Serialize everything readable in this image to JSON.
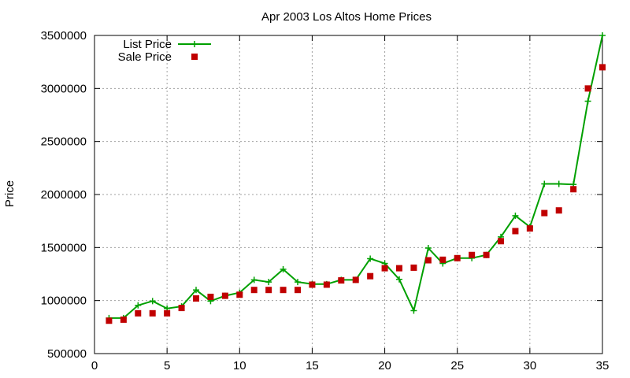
{
  "chart_data": {
    "type": "line",
    "title": "Apr 2003 Los Altos Home Prices",
    "xlabel": "",
    "ylabel": "Price",
    "xlim": [
      0,
      35
    ],
    "ylim": [
      500000,
      3500000
    ],
    "x_ticks": [
      0,
      5,
      10,
      15,
      20,
      25,
      30,
      35
    ],
    "y_ticks": [
      500000,
      1000000,
      1500000,
      2000000,
      2500000,
      3000000,
      3500000
    ],
    "grid": true,
    "legend_position": "top-left",
    "x": [
      1,
      2,
      3,
      4,
      5,
      6,
      7,
      8,
      9,
      10,
      11,
      12,
      13,
      14,
      15,
      16,
      17,
      18,
      19,
      20,
      21,
      22,
      23,
      24,
      25,
      26,
      27,
      28,
      29,
      30,
      31,
      32,
      33,
      34,
      35
    ],
    "series": [
      {
        "name": "List Price",
        "style": "line-plus",
        "color": "#00a000",
        "values": [
          835000,
          835000,
          955000,
          995000,
          925000,
          945000,
          1100000,
          995000,
          1045000,
          1075000,
          1195000,
          1175000,
          1295000,
          1175000,
          1155000,
          1155000,
          1195000,
          1195000,
          1395000,
          1350000,
          1200000,
          905000,
          1495000,
          1350000,
          1400000,
          1400000,
          1430000,
          1600000,
          1800000,
          1695000,
          2100000,
          2100000,
          2095000,
          2880000,
          3500000
        ]
      },
      {
        "name": "Sale Price",
        "style": "square",
        "color": "#c00000",
        "values": [
          810000,
          820000,
          880000,
          880000,
          880000,
          930000,
          1020000,
          1035000,
          1045000,
          1055000,
          1100000,
          1100000,
          1100000,
          1100000,
          1150000,
          1150000,
          1190000,
          1195000,
          1230000,
          1305000,
          1305000,
          1310000,
          1380000,
          1385000,
          1400000,
          1430000,
          1430000,
          1560000,
          1655000,
          1680000,
          1825000,
          1850000,
          2050000,
          3000000,
          3200000
        ]
      }
    ]
  }
}
